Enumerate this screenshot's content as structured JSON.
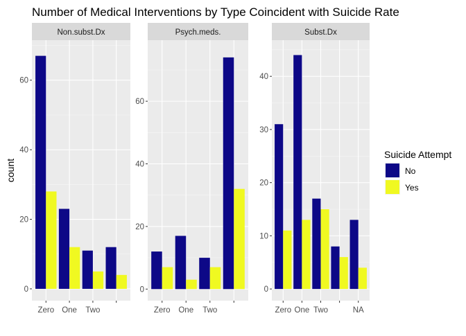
{
  "chart_data": {
    "type": "bar",
    "title": "Number of Medical Interventions by Type Coincident with Suicide Rate",
    "ylabel": "count",
    "xlabel": "",
    "legend": {
      "title": "Suicide Attempt",
      "placement": "right",
      "entries": [
        {
          "label": "No",
          "color": "#0d0887"
        },
        {
          "label": "Yes",
          "color": "#f0f921"
        }
      ]
    },
    "panel_background": "#ebebeb",
    "strip_background": "#d9d9d9",
    "grid": true,
    "facets": [
      {
        "strip": "Non.subst.Dx",
        "categories": [
          "Zero",
          "One",
          "Two",
          ""
        ],
        "ylim": [
          -3.4,
          71.5
        ],
        "yticks": [
          0,
          20,
          40,
          60
        ],
        "series": [
          {
            "name": "No",
            "values": [
              67,
              23,
              11,
              12
            ]
          },
          {
            "name": "Yes",
            "values": [
              28,
              12,
              5,
              4
            ]
          }
        ]
      },
      {
        "strip": "Psych.meds.",
        "categories": [
          "Zero",
          "One",
          "Two",
          ""
        ],
        "ylim": [
          -3.7,
          79.5
        ],
        "yticks": [
          0,
          20,
          40,
          60
        ],
        "series": [
          {
            "name": "No",
            "values": [
              12,
              17,
              10,
              74
            ]
          },
          {
            "name": "Yes",
            "values": [
              7,
              3,
              7,
              32
            ]
          }
        ]
      },
      {
        "strip": "Subst.Dx",
        "categories": [
          "Zero",
          "One",
          "Two",
          "",
          "NA"
        ],
        "ylim": [
          -2.2,
          46.8
        ],
        "yticks": [
          0,
          10,
          20,
          30,
          40
        ],
        "series": [
          {
            "name": "No",
            "values": [
              31,
              44,
              17,
              8,
              13
            ]
          },
          {
            "name": "Yes",
            "values": [
              11,
              13,
              15,
              6,
              4
            ]
          }
        ]
      }
    ]
  }
}
